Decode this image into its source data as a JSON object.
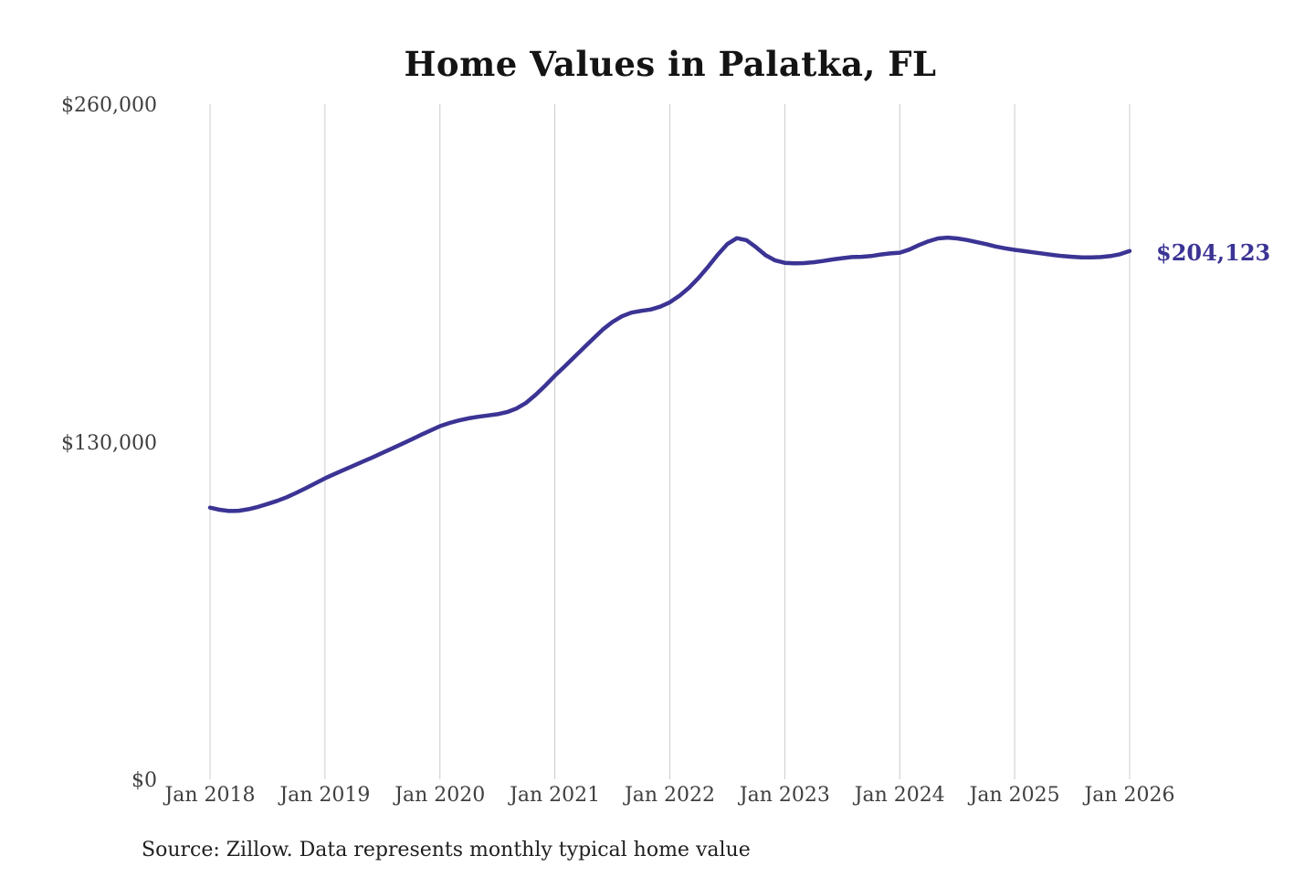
{
  "title": "Home Values in Palatka, FL",
  "source_note": "Source: Zillow. Data represents monthly typical home value",
  "current_value_label": "$204,123",
  "colors": {
    "line": "#3b3494",
    "value_label": "#3b3494",
    "gridline": "#cccccc",
    "axis_text": "#3f3f3f",
    "title_text": "#141414",
    "source_text": "#1f1f1f",
    "background": "#ffffff"
  },
  "chart_data": {
    "type": "line",
    "title": "Home Values in Palatka, FL",
    "xlabel": "",
    "ylabel": "",
    "unit": "USD",
    "ylim": [
      0,
      260000
    ],
    "grid": "vertical-only",
    "legend": "none",
    "y_ticks": [
      {
        "label": "$260,000",
        "value": 260000
      },
      {
        "label": "$130,000",
        "value": 130000
      },
      {
        "label": "$0",
        "value": 0
      }
    ],
    "x_ticks": [
      "Jan 2018",
      "Jan 2019",
      "Jan 2020",
      "Jan 2021",
      "Jan 2022",
      "Jan 2023",
      "Jan 2024",
      "Jan 2025",
      "Jan 2026"
    ],
    "series": [
      {
        "name": "Monthly typical home value",
        "start_month": "2018-01",
        "interval": "monthly",
        "end_value": 204123,
        "end_label": "$204,123",
        "values": [
          105300,
          104500,
          104000,
          104100,
          104700,
          105600,
          106700,
          107900,
          109300,
          111000,
          112800,
          114700,
          116600,
          118300,
          119900,
          121500,
          123100,
          124700,
          126400,
          128100,
          129800,
          131500,
          133300,
          135000,
          136700,
          137900,
          138900,
          139700,
          140300,
          140800,
          141300,
          142100,
          143500,
          145700,
          148800,
          152300,
          156100,
          159600,
          163200,
          166800,
          170400,
          173900,
          176800,
          179000,
          180400,
          181100,
          181600,
          182700,
          184400,
          186900,
          190000,
          193800,
          198100,
          202700,
          206800,
          209100,
          208300,
          205600,
          202500,
          200500,
          199600,
          199400,
          199500,
          199800,
          200300,
          200900,
          201400,
          201800,
          201900,
          202200,
          202800,
          203200,
          203500,
          204700,
          206400,
          207900,
          209000,
          209300,
          209000,
          208400,
          207600,
          206800,
          205900,
          205200,
          204600,
          204100,
          203600,
          203100,
          202600,
          202200,
          201900,
          201700,
          201700,
          201800,
          202200,
          202900,
          204123
        ]
      }
    ]
  }
}
